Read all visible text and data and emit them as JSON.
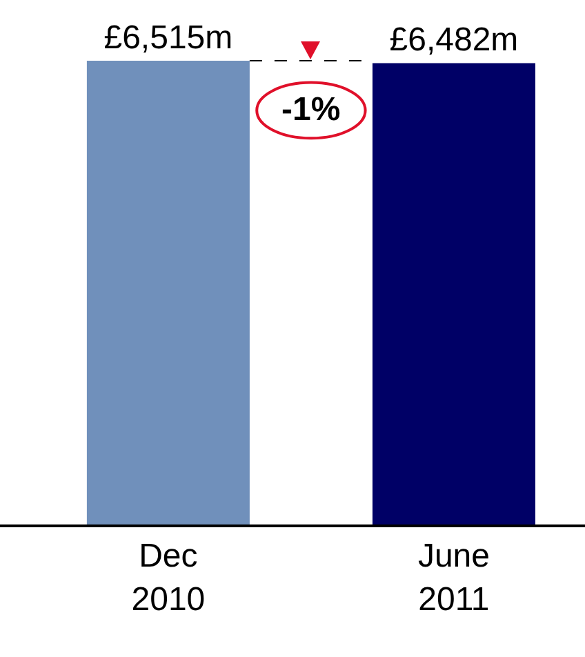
{
  "chart_data": {
    "type": "bar",
    "categories": [
      "Dec 2010",
      "June 2011"
    ],
    "values": [
      6515,
      6482
    ],
    "colors": [
      "#7090bb",
      "#000066"
    ],
    "value_labels": [
      "£6,515m",
      "£6,482m"
    ],
    "annotations": [
      "-1%"
    ],
    "grid": false
  }
}
